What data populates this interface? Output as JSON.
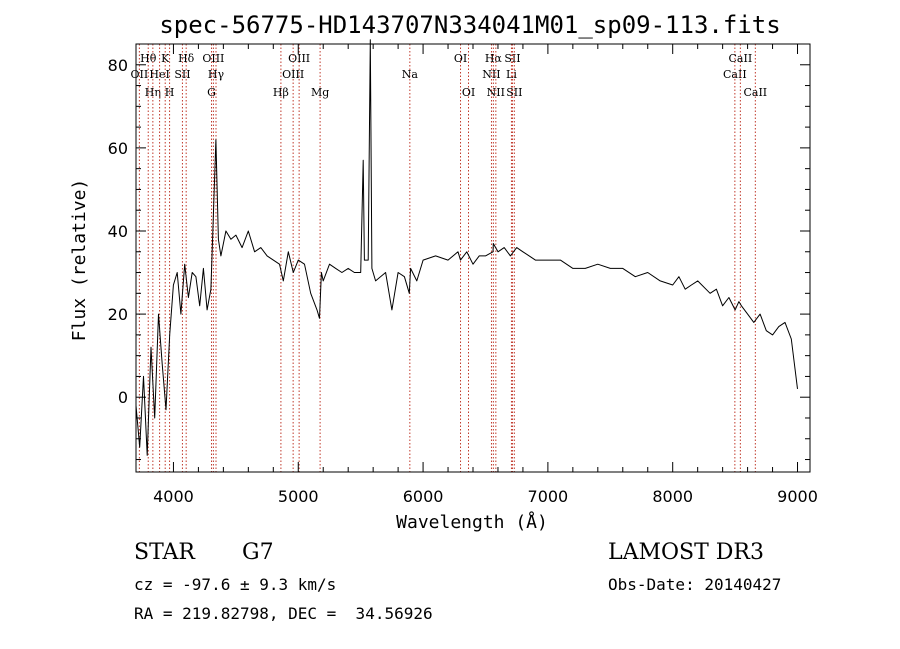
{
  "chart_data": {
    "type": "line",
    "title": "spec-56775-HD143707N334041M01_sp09-113.fits",
    "xlabel": "Wavelength (Å)",
    "ylabel": "Flux (relative)",
    "xlim": [
      3700,
      9100
    ],
    "ylim": [
      -18,
      85
    ],
    "xticks": [
      4000,
      5000,
      6000,
      7000,
      8000,
      9000
    ],
    "yticks": [
      0,
      20,
      40,
      60,
      80
    ],
    "series": [
      {
        "name": "flux",
        "color": "#000000",
        "x": [
          3700,
          3730,
          3760,
          3790,
          3820,
          3850,
          3880,
          3910,
          3940,
          3970,
          4000,
          4030,
          4060,
          4090,
          4120,
          4150,
          4180,
          4210,
          4240,
          4270,
          4300,
          4320,
          4340,
          4360,
          4380,
          4420,
          4460,
          4500,
          4550,
          4600,
          4650,
          4700,
          4750,
          4800,
          4850,
          4880,
          4920,
          4960,
          5000,
          5050,
          5100,
          5150,
          5170,
          5185,
          5200,
          5250,
          5300,
          5350,
          5400,
          5450,
          5500,
          5520,
          5530,
          5560,
          5577,
          5590,
          5620,
          5700,
          5750,
          5800,
          5850,
          5890,
          5900,
          5950,
          6000,
          6100,
          6200,
          6280,
          6300,
          6350,
          6400,
          6450,
          6500,
          6560,
          6563,
          6600,
          6650,
          6700,
          6750,
          6800,
          6850,
          6900,
          7000,
          7100,
          7200,
          7300,
          7400,
          7500,
          7600,
          7700,
          7800,
          7900,
          8000,
          8050,
          8100,
          8150,
          8200,
          8300,
          8350,
          8400,
          8450,
          8500,
          8530,
          8550,
          8600,
          8650,
          8700,
          8750,
          8800,
          8850,
          8900,
          8950,
          9000
        ],
        "y": [
          -2,
          -12,
          5,
          -14,
          12,
          -5,
          20,
          8,
          -3,
          15,
          27,
          30,
          20,
          32,
          24,
          30,
          29,
          22,
          31,
          21,
          26,
          44,
          62,
          38,
          34,
          40,
          38,
          39,
          36,
          40,
          35,
          36,
          34,
          33,
          32,
          28,
          35,
          30,
          33,
          32,
          25,
          21,
          19,
          30,
          28,
          32,
          31,
          30,
          31,
          30,
          30,
          57,
          33,
          33,
          86,
          31,
          28,
          30,
          21,
          30,
          29,
          25,
          31,
          28,
          33,
          34,
          33,
          35,
          33,
          35,
          32,
          34,
          34,
          35,
          37,
          35,
          36,
          34,
          36,
          35,
          34,
          33,
          33,
          33,
          31,
          31,
          32,
          31,
          31,
          29,
          30,
          28,
          27,
          29,
          26,
          27,
          28,
          25,
          26,
          22,
          24,
          21,
          23,
          22,
          20,
          18,
          20,
          16,
          15,
          17,
          18,
          14,
          2
        ]
      }
    ],
    "line_markers": [
      {
        "label": "OII",
        "x": 3727,
        "row": 2
      },
      {
        "label": "Hθ",
        "x": 3798,
        "row": 1
      },
      {
        "label": "Hη",
        "x": 3835,
        "row": 3
      },
      {
        "label": "HeI",
        "x": 3889,
        "row": 2
      },
      {
        "label": "K",
        "x": 3934,
        "row": 1
      },
      {
        "label": "H",
        "x": 3969,
        "row": 3
      },
      {
        "label": "SII",
        "x": 4072,
        "row": 2
      },
      {
        "label": "Hδ",
        "x": 4102,
        "row": 1
      },
      {
        "label": "G",
        "x": 4305,
        "row": 3
      },
      {
        "label": "OIII",
        "x": 4320,
        "row": 1
      },
      {
        "label": "Hγ",
        "x": 4341,
        "row": 2
      },
      {
        "label": "Hβ",
        "x": 4861,
        "row": 3
      },
      {
        "label": "OIII",
        "x": 4959,
        "row": 2
      },
      {
        "label": "OIII",
        "x": 5007,
        "row": 1
      },
      {
        "label": "Mg",
        "x": 5175,
        "row": 3
      },
      {
        "label": "Na",
        "x": 5894,
        "row": 2
      },
      {
        "label": "OI",
        "x": 6300,
        "row": 1
      },
      {
        "label": "OI",
        "x": 6364,
        "row": 3
      },
      {
        "label": "NII",
        "x": 6548,
        "row": 2
      },
      {
        "label": "Hα",
        "x": 6563,
        "row": 1
      },
      {
        "label": "NII",
        "x": 6583,
        "row": 3
      },
      {
        "label": "Li",
        "x": 6708,
        "row": 2
      },
      {
        "label": "SII",
        "x": 6716,
        "row": 1
      },
      {
        "label": "SII",
        "x": 6731,
        "row": 3
      },
      {
        "label": "CaII",
        "x": 8498,
        "row": 2
      },
      {
        "label": "CaII",
        "x": 8542,
        "row": 1
      },
      {
        "label": "CaII",
        "x": 8662,
        "row": 3
      }
    ]
  },
  "info": {
    "object_class": "STAR",
    "subclass": "G7",
    "survey": "LAMOST DR3",
    "redshift": "cz = -97.6 ± 9.3 km/s",
    "obs_date": "Obs-Date: 20140427",
    "coords": "RA = 219.82798, DEC =  34.56926"
  }
}
